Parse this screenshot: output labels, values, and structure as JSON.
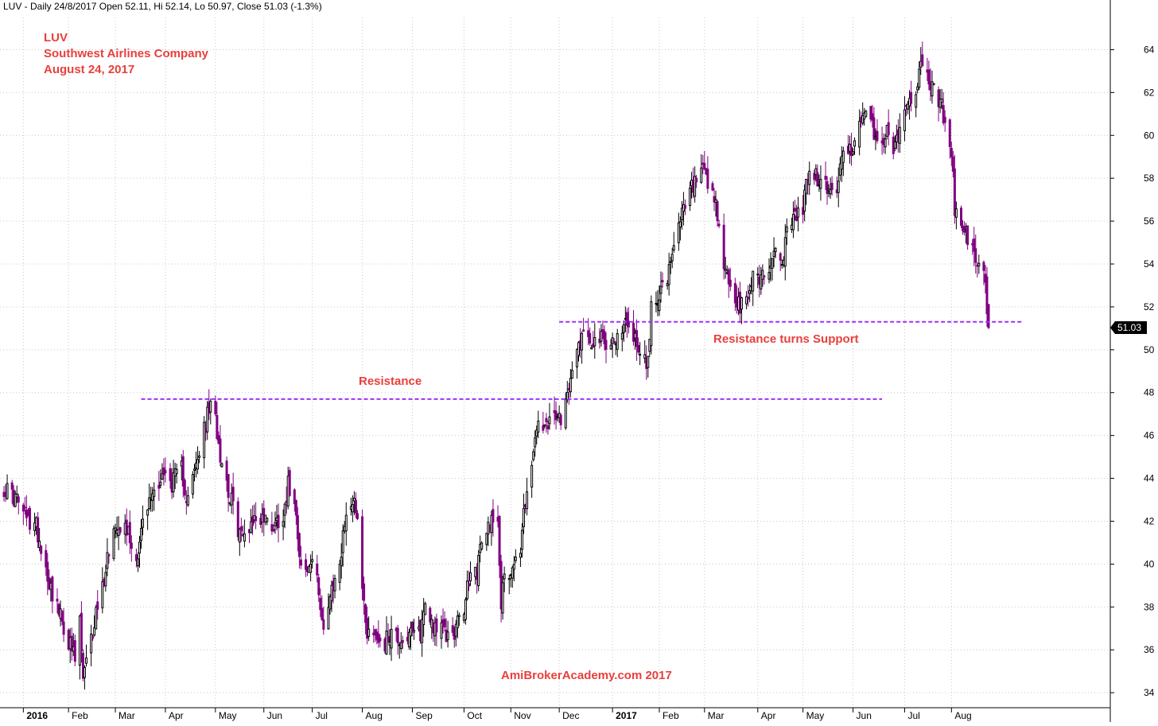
{
  "header": {
    "text": "LUV - Daily 24/8/2017 Open 52.11, Hi 52.14, Lo 50.97, Close 51.03 (-1.3%)"
  },
  "title_block": {
    "ticker": "LUV",
    "company": "Southwest Airlines Company",
    "date": "August 24, 2017"
  },
  "watermark": "AmiBrokerAcademy.com  2017",
  "colors": {
    "annotation": "#e8403d",
    "level_line": "#9b30ff",
    "up_candle": "#000000",
    "down_candle": "#800080",
    "grid": "#c8c8c8",
    "price_tag_bg": "#000000",
    "price_tag_fg": "#ffffff"
  },
  "chart_data": {
    "type": "candlestick",
    "symbol": "LUV",
    "period": "Daily",
    "grid": true,
    "y_axis_side": "right",
    "ylim": [
      33.3,
      65.5
    ],
    "y_ticks": [
      34,
      36,
      38,
      40,
      42,
      44,
      46,
      48,
      50,
      52,
      54,
      56,
      58,
      60,
      62,
      64
    ],
    "x_ticks": [
      {
        "label": "2016",
        "bold": true,
        "date": "2016-01-04"
      },
      {
        "label": "Feb",
        "bold": false,
        "date": "2016-02-01"
      },
      {
        "label": "Mar",
        "bold": false,
        "date": "2016-03-01"
      },
      {
        "label": "Apr",
        "bold": false,
        "date": "2016-04-01"
      },
      {
        "label": "May",
        "bold": false,
        "date": "2016-05-02"
      },
      {
        "label": "Jun",
        "bold": false,
        "date": "2016-06-01"
      },
      {
        "label": "Jul",
        "bold": false,
        "date": "2016-07-01"
      },
      {
        "label": "Aug",
        "bold": false,
        "date": "2016-08-01"
      },
      {
        "label": "Sep",
        "bold": false,
        "date": "2016-09-01"
      },
      {
        "label": "Oct",
        "bold": false,
        "date": "2016-10-03"
      },
      {
        "label": "Nov",
        "bold": false,
        "date": "2016-11-01"
      },
      {
        "label": "Dec",
        "bold": false,
        "date": "2016-12-01"
      },
      {
        "label": "2017",
        "bold": true,
        "date": "2017-01-03"
      },
      {
        "label": "Feb",
        "bold": false,
        "date": "2017-02-01"
      },
      {
        "label": "Mar",
        "bold": false,
        "date": "2017-03-01"
      },
      {
        "label": "Apr",
        "bold": false,
        "date": "2017-04-03"
      },
      {
        "label": "May",
        "bold": false,
        "date": "2017-05-01"
      },
      {
        "label": "Jun",
        "bold": false,
        "date": "2017-06-01"
      },
      {
        "label": "Jul",
        "bold": false,
        "date": "2017-07-03"
      },
      {
        "label": "Aug",
        "bold": false,
        "date": "2017-08-01"
      }
    ],
    "first_date": "2015-12-23",
    "last_date": "2017-08-24",
    "price_anchors": [
      [
        "2015-12-23",
        43.6
      ],
      [
        "2015-12-31",
        43.0
      ],
      [
        "2016-01-07",
        42.0
      ],
      [
        "2016-01-12",
        41.8
      ],
      [
        "2016-01-20",
        39.2
      ],
      [
        "2016-01-27",
        37.5
      ],
      [
        "2016-02-02",
        36.2
      ],
      [
        "2016-02-05",
        35.5
      ],
      [
        "2016-02-08",
        37.3
      ],
      [
        "2016-02-10",
        34.6
      ],
      [
        "2016-02-12",
        35.3
      ],
      [
        "2016-02-16",
        36.8
      ],
      [
        "2016-02-18",
        37.8
      ],
      [
        "2016-02-22",
        38.9
      ],
      [
        "2016-02-26",
        40.8
      ],
      [
        "2016-03-02",
        42.0
      ],
      [
        "2016-03-08",
        41.7
      ],
      [
        "2016-03-14",
        40.2
      ],
      [
        "2016-03-17",
        41.6
      ],
      [
        "2016-03-23",
        43.1
      ],
      [
        "2016-03-30",
        44.2
      ],
      [
        "2016-04-05",
        43.8
      ],
      [
        "2016-04-11",
        44.4
      ],
      [
        "2016-04-14",
        43.2
      ],
      [
        "2016-04-19",
        44.2
      ],
      [
        "2016-04-22",
        45.2
      ],
      [
        "2016-04-26",
        46.5
      ],
      [
        "2016-04-28",
        47.3
      ],
      [
        "2016-05-02",
        46.8
      ],
      [
        "2016-05-05",
        45.2
      ],
      [
        "2016-05-10",
        43.5
      ],
      [
        "2016-05-16",
        41.7
      ],
      [
        "2016-05-19",
        41.2
      ],
      [
        "2016-05-24",
        42.0
      ],
      [
        "2016-05-31",
        42.2
      ],
      [
        "2016-06-07",
        41.8
      ],
      [
        "2016-06-13",
        42.4
      ],
      [
        "2016-06-16",
        43.7
      ],
      [
        "2016-06-20",
        43.2
      ],
      [
        "2016-06-24",
        39.9
      ],
      [
        "2016-06-28",
        39.6
      ],
      [
        "2016-07-01",
        40.2
      ],
      [
        "2016-07-06",
        38.3
      ],
      [
        "2016-07-08",
        37.0
      ],
      [
        "2016-07-13",
        38.6
      ],
      [
        "2016-07-19",
        40.5
      ],
      [
        "2016-07-22",
        42.6
      ],
      [
        "2016-07-27",
        42.9
      ],
      [
        "2016-07-29",
        42.5
      ],
      [
        "2016-07-30",
        42.5
      ],
      [
        "2016-08-01",
        38.8
      ],
      [
        "2016-08-04",
        36.9
      ],
      [
        "2016-08-09",
        36.7
      ],
      [
        "2016-08-15",
        36.3
      ],
      [
        "2016-08-19",
        36.9
      ],
      [
        "2016-08-24",
        36.5
      ],
      [
        "2016-08-30",
        36.6
      ],
      [
        "2016-09-06",
        36.8
      ],
      [
        "2016-09-09",
        38.2
      ],
      [
        "2016-09-13",
        37.3
      ],
      [
        "2016-09-19",
        36.9
      ],
      [
        "2016-09-23",
        36.6
      ],
      [
        "2016-09-28",
        37.0
      ],
      [
        "2016-10-03",
        37.9
      ],
      [
        "2016-10-06",
        39.3
      ],
      [
        "2016-10-11",
        39.7
      ],
      [
        "2016-10-14",
        41.0
      ],
      [
        "2016-10-18",
        41.7
      ],
      [
        "2016-10-21",
        42.4
      ],
      [
        "2016-10-24",
        41.9
      ],
      [
        "2016-10-26",
        38.3
      ],
      [
        "2016-10-28",
        39.2
      ],
      [
        "2016-11-02",
        40.0
      ],
      [
        "2016-11-07",
        40.6
      ],
      [
        "2016-11-09",
        42.4
      ],
      [
        "2016-11-11",
        43.6
      ],
      [
        "2016-11-15",
        45.1
      ],
      [
        "2016-11-18",
        46.6
      ],
      [
        "2016-11-23",
        46.2
      ],
      [
        "2016-11-29",
        47.0
      ],
      [
        "2016-12-02",
        46.4
      ],
      [
        "2016-12-05",
        47.5
      ],
      [
        "2016-12-08",
        49.1
      ],
      [
        "2016-12-13",
        50.4
      ],
      [
        "2016-12-16",
        50.8
      ],
      [
        "2016-12-21",
        50.5
      ],
      [
        "2016-12-28",
        50.4
      ],
      [
        "2016-12-30",
        49.9
      ],
      [
        "2017-01-04",
        50.6
      ],
      [
        "2017-01-09",
        50.7
      ],
      [
        "2017-01-12",
        51.4
      ],
      [
        "2017-01-17",
        50.5
      ],
      [
        "2017-01-20",
        50.0
      ],
      [
        "2017-01-25",
        49.3
      ],
      [
        "2017-01-27",
        52.0
      ],
      [
        "2017-02-01",
        52.7
      ],
      [
        "2017-02-06",
        53.2
      ],
      [
        "2017-02-10",
        54.6
      ],
      [
        "2017-02-15",
        56.3
      ],
      [
        "2017-02-21",
        57.5
      ],
      [
        "2017-02-24",
        57.9
      ],
      [
        "2017-02-28",
        58.2
      ],
      [
        "2017-03-03",
        57.6
      ],
      [
        "2017-03-08",
        56.6
      ],
      [
        "2017-03-13",
        54.0
      ],
      [
        "2017-03-15",
        53.3
      ],
      [
        "2017-03-20",
        52.3
      ],
      [
        "2017-03-23",
        51.9
      ],
      [
        "2017-03-27",
        52.2
      ],
      [
        "2017-03-31",
        53.5
      ],
      [
        "2017-04-05",
        53.4
      ],
      [
        "2017-04-10",
        53.8
      ],
      [
        "2017-04-13",
        54.6
      ],
      [
        "2017-04-18",
        54.2
      ],
      [
        "2017-04-21",
        55.3
      ],
      [
        "2017-04-26",
        56.2
      ],
      [
        "2017-05-01",
        56.5
      ],
      [
        "2017-05-03",
        57.9
      ],
      [
        "2017-05-08",
        58.2
      ],
      [
        "2017-05-12",
        57.8
      ],
      [
        "2017-05-17",
        57.4
      ],
      [
        "2017-05-22",
        57.6
      ],
      [
        "2017-05-25",
        58.8
      ],
      [
        "2017-05-31",
        59.5
      ],
      [
        "2017-06-05",
        60.3
      ],
      [
        "2017-06-09",
        60.9
      ],
      [
        "2017-06-14",
        60.2
      ],
      [
        "2017-06-19",
        59.4
      ],
      [
        "2017-06-22",
        60.3
      ],
      [
        "2017-06-27",
        59.3
      ],
      [
        "2017-06-30",
        60.6
      ],
      [
        "2017-07-05",
        61.4
      ],
      [
        "2017-07-10",
        62.3
      ],
      [
        "2017-07-14",
        63.4
      ],
      [
        "2017-07-18",
        62.6
      ],
      [
        "2017-07-21",
        62.1
      ],
      [
        "2017-07-26",
        61.3
      ],
      [
        "2017-07-28",
        60.4
      ],
      [
        "2017-08-01",
        59.4
      ],
      [
        "2017-08-03",
        56.6
      ],
      [
        "2017-08-07",
        55.5
      ],
      [
        "2017-08-10",
        55.4
      ],
      [
        "2017-08-14",
        54.6
      ],
      [
        "2017-08-16",
        54.0
      ],
      [
        "2017-08-18",
        53.6
      ],
      [
        "2017-08-22",
        53.4
      ],
      [
        "2017-08-23",
        52.1
      ],
      [
        "2017-08-24",
        51.03
      ]
    ],
    "last_candle": {
      "date": "2017-08-24",
      "open": 52.11,
      "high": 52.14,
      "low": 50.97,
      "close": 51.03
    },
    "last_price_label": "51.03",
    "levels": [
      {
        "name": "Resistance",
        "label": "Resistance",
        "value": 47.7,
        "start": "2016-03-17",
        "end": "2017-06-19"
      },
      {
        "name": "Resistance turns Support",
        "label": "Resistance turns Support",
        "value": 51.3,
        "start": "2016-12-01",
        "end": "2017-09-14"
      }
    ]
  }
}
